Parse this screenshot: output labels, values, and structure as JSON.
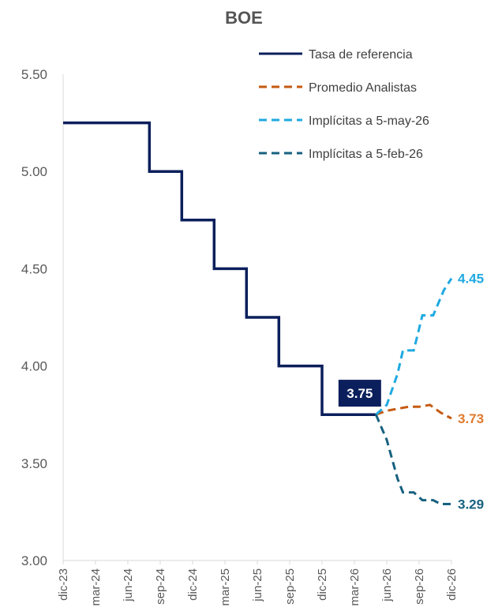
{
  "chart_data": {
    "type": "line",
    "title": "BOE",
    "xlabel": "",
    "ylabel": "",
    "ylim": [
      3.0,
      5.5
    ],
    "yticks": [
      "3.00",
      "3.50",
      "4.00",
      "4.50",
      "5.00",
      "5.50"
    ],
    "x_tick_labels": [
      "dic-23",
      "mar-24",
      "jun-24",
      "sep-24",
      "dic-24",
      "mar-25",
      "jun-25",
      "sep-25",
      "dic-25",
      "mar-26",
      "jun-26",
      "sep-26",
      "dic-26"
    ],
    "x_range_months": [
      0,
      36
    ],
    "grid": false,
    "legend_position": "top-right",
    "series": [
      {
        "name": "Tasa de referencia",
        "style": "solid",
        "color": "#0b1f5c",
        "points": [
          [
            0,
            5.25
          ],
          [
            8,
            5.25
          ],
          [
            8,
            5.0
          ],
          [
            11,
            5.0
          ],
          [
            11,
            4.75
          ],
          [
            14,
            4.75
          ],
          [
            14,
            4.5
          ],
          [
            17,
            4.5
          ],
          [
            17,
            4.25
          ],
          [
            20,
            4.25
          ],
          [
            20,
            4.0
          ],
          [
            24,
            4.0
          ],
          [
            24,
            3.75
          ],
          [
            29,
            3.75
          ]
        ]
      },
      {
        "name": "Promedio Analistas",
        "style": "dashed",
        "color": "#c55a11",
        "points": [
          [
            29,
            3.75
          ],
          [
            30,
            3.77
          ],
          [
            31,
            3.78
          ],
          [
            32,
            3.79
          ],
          [
            33,
            3.79
          ],
          [
            34,
            3.8
          ],
          [
            35,
            3.76
          ],
          [
            36,
            3.73
          ]
        ]
      },
      {
        "name": "Implícitas a 5-may-26",
        "style": "dashed",
        "color": "#1fa9e1",
        "points": [
          [
            29,
            3.75
          ],
          [
            30,
            3.8
          ],
          [
            31,
            3.96
          ],
          [
            31.5,
            4.08
          ],
          [
            32.5,
            4.08
          ],
          [
            33.3,
            4.26
          ],
          [
            34.3,
            4.26
          ],
          [
            35.3,
            4.39
          ],
          [
            36,
            4.45
          ]
        ]
      },
      {
        "name": "Implícitas a 5-feb-26",
        "style": "dashed",
        "color": "#17607f",
        "points": [
          [
            29,
            3.75
          ],
          [
            30,
            3.62
          ],
          [
            31,
            3.42
          ],
          [
            31.5,
            3.35
          ],
          [
            32.5,
            3.35
          ],
          [
            33.3,
            3.31
          ],
          [
            34.3,
            3.31
          ],
          [
            35,
            3.29
          ],
          [
            36,
            3.29
          ]
        ]
      }
    ],
    "annotations": [
      {
        "text": "3.75",
        "x": 27.5,
        "y": 3.86,
        "background": "#0b1f5c",
        "color": "#ffffff"
      },
      {
        "text": "4.45",
        "x": 36,
        "y": 4.45,
        "color": "#1fa9e1"
      },
      {
        "text": "3.73",
        "x": 36,
        "y": 3.73,
        "color": "#e07a2e"
      },
      {
        "text": "3.29",
        "x": 36,
        "y": 3.29,
        "color": "#17607f"
      }
    ]
  }
}
